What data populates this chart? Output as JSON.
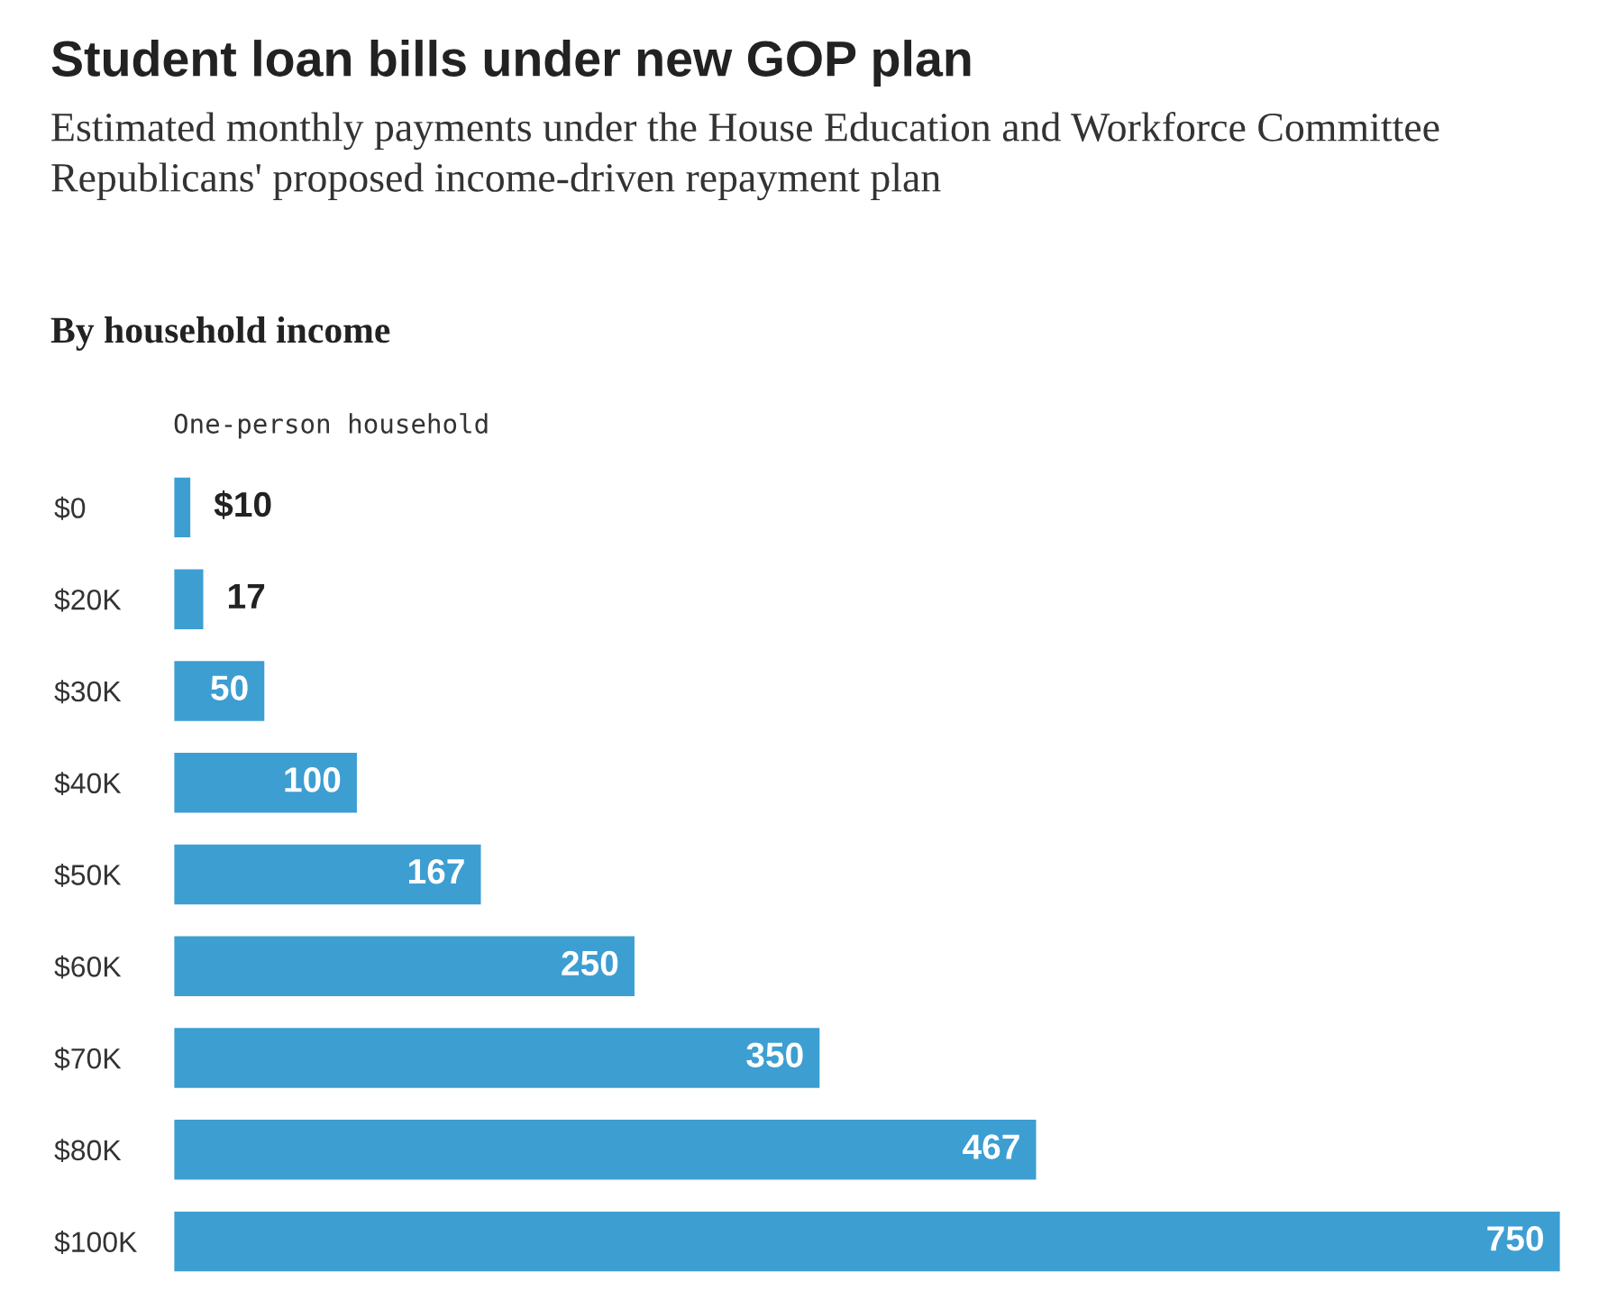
{
  "chart_data": {
    "type": "bar",
    "orientation": "horizontal",
    "title": "Student loan bills under new GOP plan",
    "subtitle": "Estimated monthly payments under the House Education and Workforce Committee Republicans' proposed income-driven repayment plan",
    "ylabel": "By household income",
    "categories": [
      "$0",
      "$20K",
      "$30K",
      "$40K",
      "$50K",
      "$60K",
      "$70K",
      "$80K",
      "$100K"
    ],
    "series": [
      {
        "name": "One-person household",
        "color": "#3d9ed2",
        "values": [
          10,
          17,
          50,
          100,
          167,
          250,
          350,
          467,
          750
        ],
        "value_labels": [
          "$10",
          "17",
          "50",
          "100",
          "167",
          "250",
          "350",
          "467",
          "750"
        ]
      }
    ],
    "grid": false,
    "legend": false
  }
}
